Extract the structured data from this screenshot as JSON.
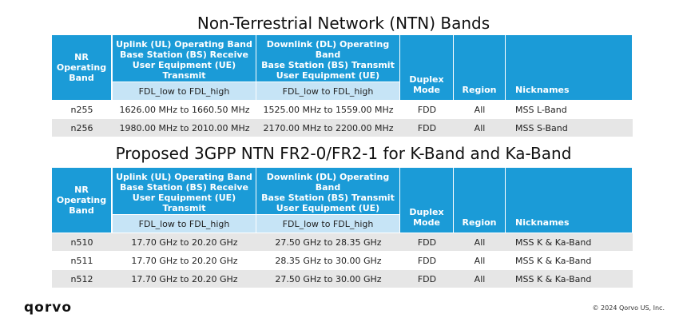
{
  "tables": [
    {
      "title": "Non-Terrestrial Network (NTN) Bands",
      "columns": [
        {
          "lines": [
            "NR",
            "Operating",
            "Band"
          ]
        },
        {
          "lines": [
            "Uplink (UL) Operating Band",
            "Base Station (BS) Receive",
            "User Equipment (UE) Transmit"
          ],
          "sub": "FDL_low to FDL_high"
        },
        {
          "lines": [
            "Downlink (DL) Operating Band",
            "Base Station (BS) Transmit",
            "User Equipment (UE) Receive"
          ],
          "sub": "FDL_low to FDL_high"
        },
        {
          "lines": [
            "Duplex",
            "Mode"
          ]
        },
        {
          "lines": [
            "Region"
          ]
        },
        {
          "lines": [
            "Nicknames"
          ]
        }
      ],
      "rows": [
        [
          "n255",
          "1626.00 MHz to 1660.50 MHz",
          "1525.00 MHz to 1559.00 MHz",
          "FDD",
          "All",
          "MSS L-Band"
        ],
        [
          "n256",
          "1980.00 MHz to 2010.00 MHz",
          "2170.00 MHz to 2200.00 MHz",
          "FDD",
          "All",
          "MSS S-Band"
        ]
      ]
    },
    {
      "title": "Proposed 3GPP NTN FR2-0/FR2-1 for K-Band and Ka-Band",
      "columns": [
        {
          "lines": [
            "NR",
            "Operating",
            "Band"
          ]
        },
        {
          "lines": [
            "Uplink (UL) Operating Band",
            "Base Station (BS) Receive",
            "User Equipment (UE) Transmit"
          ],
          "sub": "FDL_low to FDL_high"
        },
        {
          "lines": [
            "Downlink (DL) Operating Band",
            "Base Station (BS) Transmit",
            "User Equipment (UE) Receive"
          ],
          "sub": "FDL_low to FDL_high"
        },
        {
          "lines": [
            "Duplex",
            "Mode"
          ]
        },
        {
          "lines": [
            "Region"
          ]
        },
        {
          "lines": [
            "Nicknames"
          ]
        }
      ],
      "rows": [
        [
          "n510",
          "17.70 GHz to 20.20 GHz",
          "27.50 GHz to 28.35 GHz",
          "FDD",
          "All",
          "MSS K & Ka-Band"
        ],
        [
          "n511",
          "17.70 GHz to 20.20 GHz",
          "28.35 GHz to 30.00 GHz",
          "FDD",
          "All",
          "MSS K & Ka-Band"
        ],
        [
          "n512",
          "17.70 GHz to 20.20 GHz",
          "27.50 GHz to 30.00 GHz",
          "FDD",
          "All",
          "MSS K & Ka-Band"
        ]
      ]
    }
  ],
  "footer": {
    "logo": "qorvo",
    "copyright": "© 2024 Qorvo US, Inc."
  }
}
